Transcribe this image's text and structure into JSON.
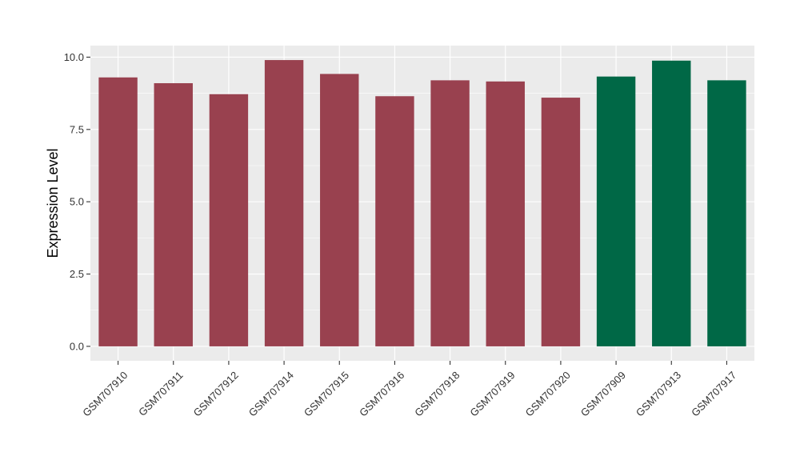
{
  "chart_data": {
    "type": "bar",
    "title": "",
    "xlabel": "",
    "ylabel": "Expression Level",
    "ylim": [
      -0.5,
      10.4
    ],
    "yticks": [
      "0.0",
      "2.5",
      "5.0",
      "7.5",
      "10.0"
    ],
    "grid": true,
    "categories": [
      "GSM707910",
      "GSM707911",
      "GSM707912",
      "GSM707914",
      "GSM707915",
      "GSM707916",
      "GSM707918",
      "GSM707919",
      "GSM707920",
      "GSM707909",
      "GSM707913",
      "GSM707917"
    ],
    "values": [
      9.3,
      9.1,
      8.72,
      9.9,
      9.42,
      8.65,
      9.2,
      9.16,
      8.6,
      9.33,
      9.88,
      9.2
    ],
    "bar_colors": [
      "#99414f",
      "#99414f",
      "#99414f",
      "#99414f",
      "#99414f",
      "#99414f",
      "#99414f",
      "#99414f",
      "#99414f",
      "#006846",
      "#006846",
      "#006846"
    ],
    "panel_background": "#ebebeb",
    "grid_color": "#ffffff"
  }
}
